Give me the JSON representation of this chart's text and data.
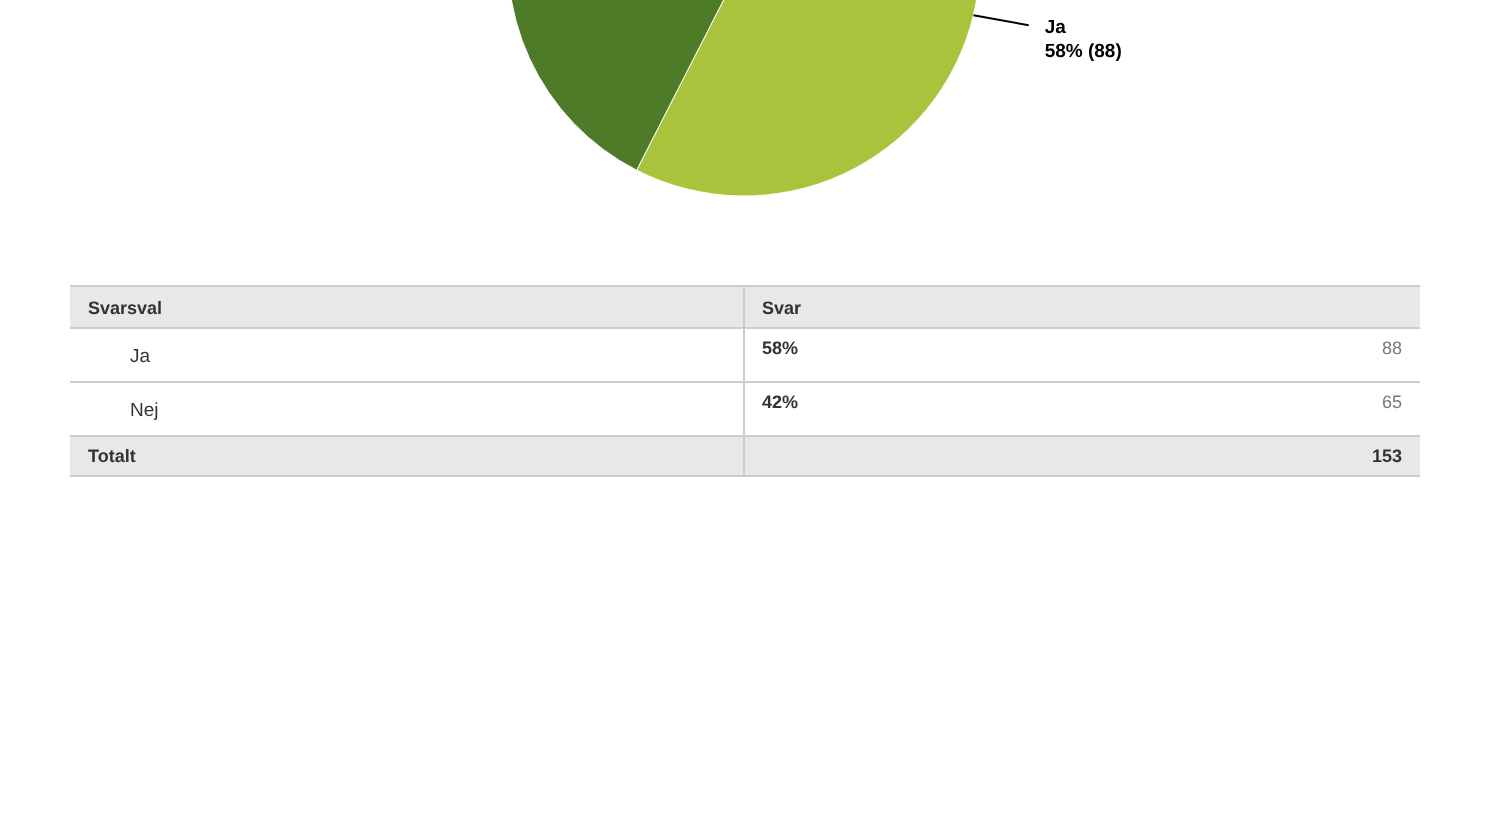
{
  "chart_data": [
    {
      "type": "pie",
      "categories": [
        "Ja",
        null
      ],
      "values": [
        88,
        65
      ],
      "colors": [
        "#a8c43c",
        "#4e7b28"
      ],
      "value_labels": [
        "58% (88)",
        null
      ]
    },
    {
      "type": "other",
      "annotations": [
        "Svarsval",
        "Svar",
        "Ja",
        "58%",
        "88",
        "Nej",
        "42%",
        "65",
        "Totalt",
        "153"
      ]
    }
  ]
}
